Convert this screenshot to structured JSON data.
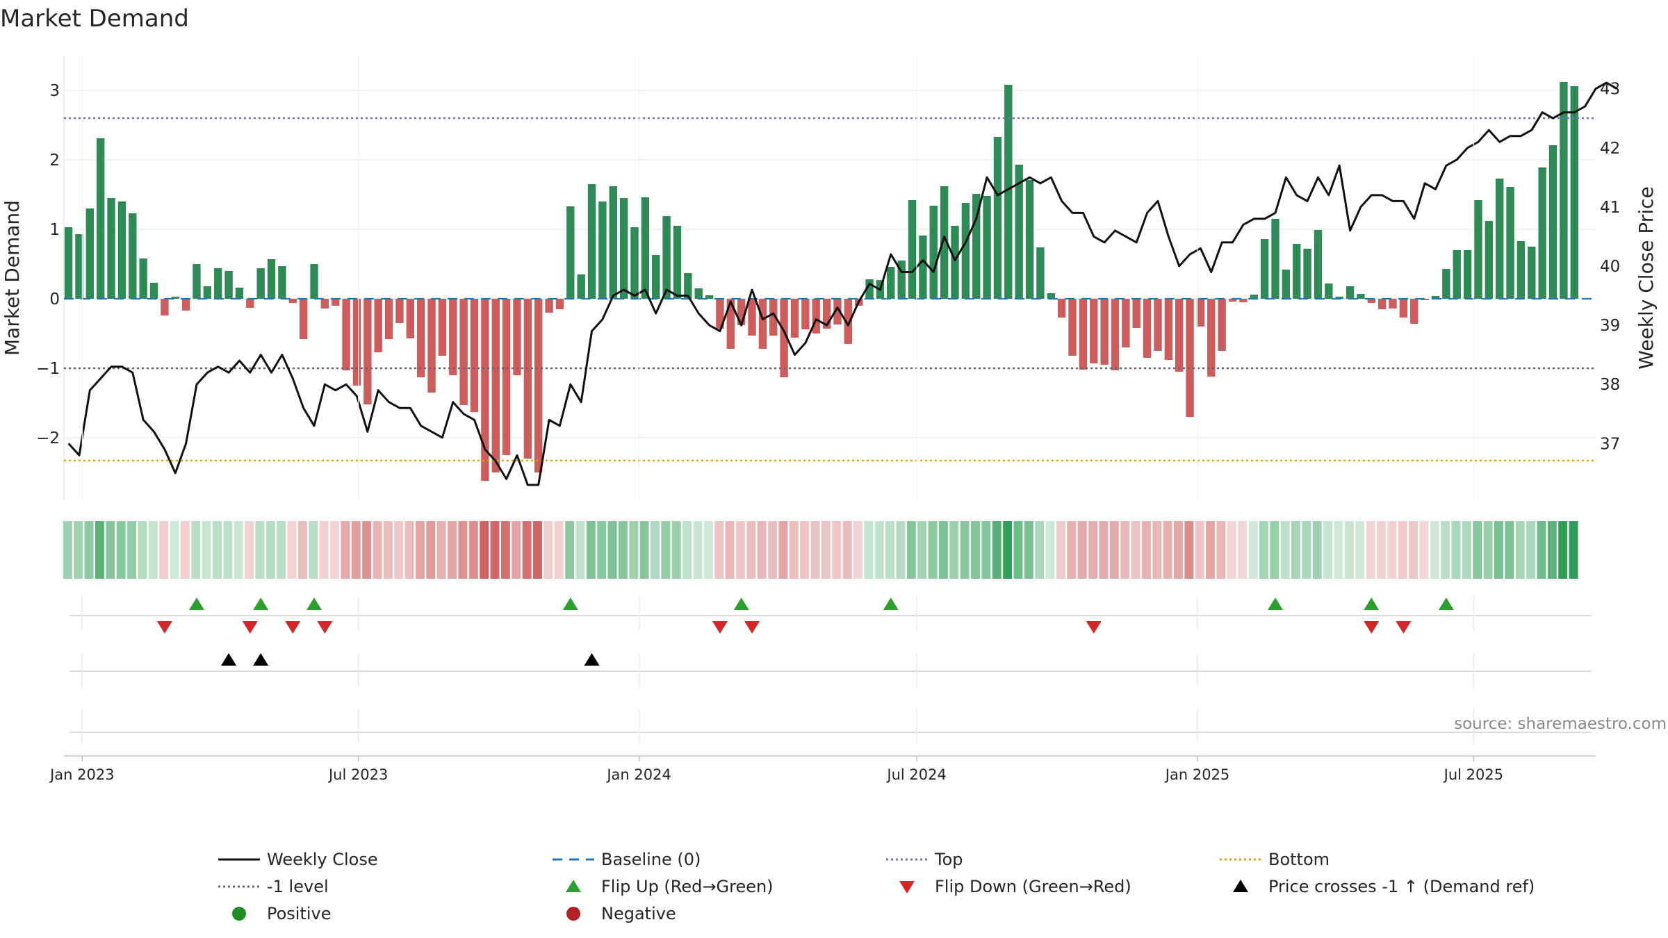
{
  "chart_data": {
    "type": "bar",
    "title": "Market Demand",
    "ylabel_left": "Market Demand",
    "ylabel_right": "Weekly Close Price",
    "source": "source: sharemaestro.com",
    "ylim_left": [
      -2.9,
      3.5
    ],
    "yticks_left": [
      3,
      2,
      1,
      0,
      -1,
      -2
    ],
    "ytick_labels_left": [
      "3",
      "2",
      "1",
      "0",
      "−1",
      "−2"
    ],
    "ylim_right": [
      36.04,
      43.56
    ],
    "yticks_right": [
      43,
      42,
      41,
      40,
      39,
      38,
      37
    ],
    "x_range": [
      "2022-12-20",
      "2025-09-19"
    ],
    "x_ticks": [
      {
        "date": "2023-01-01",
        "label": "Jan 2023"
      },
      {
        "date": "2023-07-01",
        "label": "Jul 2023"
      },
      {
        "date": "2024-01-01",
        "label": "Jan 2024"
      },
      {
        "date": "2024-07-01",
        "label": "Jul 2024"
      },
      {
        "date": "2025-01-01",
        "label": "Jan 2025"
      },
      {
        "date": "2025-07-01",
        "label": "Jul 2025"
      }
    ],
    "start_week": "2022-12-23",
    "week_days": 7,
    "reference_lines": {
      "top": 2.6,
      "minus_one": -1.0,
      "bottom": -2.33,
      "baseline": 0
    },
    "demand": [
      1.03,
      0.93,
      1.3,
      2.31,
      1.45,
      1.4,
      1.23,
      0.58,
      0.23,
      -0.24,
      0.03,
      -0.17,
      0.5,
      0.18,
      0.44,
      0.4,
      0.16,
      -0.13,
      0.44,
      0.57,
      0.47,
      -0.06,
      -0.58,
      0.5,
      -0.14,
      -0.1,
      -1.03,
      -1.25,
      -1.52,
      -0.77,
      -0.58,
      -0.35,
      -0.57,
      -1.13,
      -1.35,
      -0.82,
      -1.1,
      -1.53,
      -1.63,
      -2.62,
      -2.5,
      -2.25,
      -1.1,
      -2.3,
      -2.5,
      -0.2,
      -0.15,
      1.33,
      0.35,
      1.65,
      1.4,
      1.62,
      1.45,
      1.03,
      1.46,
      0.63,
      1.19,
      1.05,
      0.37,
      0.15,
      0.05,
      -0.43,
      -0.72,
      -0.38,
      -0.53,
      -0.72,
      -0.53,
      -1.13,
      -0.56,
      -0.44,
      -0.5,
      -0.43,
      -0.37,
      -0.65,
      -0.1,
      0.28,
      0.27,
      0.46,
      0.55,
      1.42,
      0.91,
      1.34,
      1.62,
      1.05,
      1.38,
      1.51,
      1.48,
      2.33,
      3.08,
      1.93,
      1.71,
      0.74,
      0.08,
      -0.27,
      -0.82,
      -1.02,
      -0.93,
      -0.95,
      -1.03,
      -0.7,
      -0.42,
      -0.85,
      -0.75,
      -0.88,
      -1.05,
      -1.7,
      -0.4,
      -1.12,
      -0.75,
      -0.04,
      -0.05,
      0.06,
      0.86,
      1.15,
      0.42,
      0.79,
      0.72,
      0.99,
      0.22,
      0.03,
      0.18,
      0.07,
      -0.06,
      -0.15,
      -0.14,
      -0.27,
      -0.36,
      -0.02,
      0.04,
      0.43,
      0.7,
      0.7,
      1.42,
      1.12,
      1.73,
      1.61,
      0.83,
      0.75,
      1.89,
      2.21,
      3.12,
      3.06
    ],
    "close": [
      37.0,
      36.8,
      37.9,
      38.1,
      38.3,
      38.3,
      38.2,
      37.4,
      37.2,
      36.9,
      36.5,
      37.0,
      38.0,
      38.2,
      38.3,
      38.2,
      38.4,
      38.2,
      38.5,
      38.2,
      38.5,
      38.1,
      37.6,
      37.3,
      38.0,
      37.9,
      38.0,
      37.8,
      37.2,
      37.9,
      37.7,
      37.6,
      37.6,
      37.3,
      37.2,
      37.1,
      37.7,
      37.5,
      37.4,
      36.9,
      36.7,
      36.4,
      36.8,
      36.3,
      36.3,
      37.4,
      37.3,
      38.0,
      37.7,
      38.9,
      39.1,
      39.5,
      39.6,
      39.5,
      39.6,
      39.2,
      39.6,
      39.5,
      39.5,
      39.2,
      39.0,
      38.9,
      39.4,
      39.0,
      39.6,
      39.1,
      39.2,
      38.9,
      38.5,
      38.7,
      39.1,
      39.0,
      39.3,
      39.0,
      39.4,
      39.7,
      39.6,
      40.2,
      39.9,
      39.9,
      40.1,
      39.9,
      40.5,
      40.1,
      40.4,
      40.8,
      41.5,
      41.2,
      41.3,
      41.4,
      41.5,
      41.4,
      41.5,
      41.1,
      40.9,
      40.9,
      40.5,
      40.4,
      40.6,
      40.5,
      40.4,
      40.9,
      41.1,
      40.5,
      40.0,
      40.2,
      40.3,
      39.9,
      40.4,
      40.4,
      40.7,
      40.8,
      40.8,
      40.9,
      41.5,
      41.2,
      41.1,
      41.5,
      41.2,
      41.7,
      40.6,
      41.0,
      41.2,
      41.2,
      41.1,
      41.1,
      40.8,
      41.4,
      41.3,
      41.7,
      41.8,
      42.0,
      42.1,
      42.3,
      42.1,
      42.2,
      42.2,
      42.3,
      42.6,
      42.5,
      42.6,
      42.6,
      42.7,
      43.0,
      43.1,
      43.0
    ],
    "flip_up_weeks": [
      12,
      18,
      23,
      47,
      63,
      77,
      113,
      122,
      129
    ],
    "flip_down_weeks": [
      9,
      17,
      21,
      24,
      61,
      64,
      96,
      122,
      125
    ],
    "price_cross_weeks": [
      15,
      18,
      49
    ],
    "colors": {
      "positive_bar": "#2e8b57",
      "negative_bar": "#cd5c5c",
      "close_line": "#111111",
      "baseline": "#1f77b4",
      "top": "#7070c8",
      "bottom": "#e6a000",
      "minus_one": "#666677",
      "flip_up": "#2ca02c",
      "flip_down": "#d62728",
      "price_cross": "#000000",
      "positive_dot": "#228b22",
      "negative_dot": "#b22222"
    },
    "legend": [
      {
        "label": "Weekly Close",
        "marker": "line-solid",
        "color": "#111111"
      },
      {
        "label": "Baseline (0)",
        "marker": "line-dashed",
        "color": "#1f77b4"
      },
      {
        "label": "Top",
        "marker": "line-dotted",
        "color": "#7070c8"
      },
      {
        "label": "Bottom",
        "marker": "line-dotted",
        "color": "#e6a000"
      },
      {
        "label": "-1 level",
        "marker": "line-dotted",
        "color": "#666677"
      },
      {
        "label": "Flip Up (Red→Green)",
        "marker": "triangle-up",
        "color": "#2ca02c"
      },
      {
        "label": "Flip Down (Green→Red)",
        "marker": "triangle-down",
        "color": "#d62728"
      },
      {
        "label": "Price crosses -1 ↑ (Demand ref)",
        "marker": "triangle-up",
        "color": "#000000"
      },
      {
        "label": "Positive",
        "marker": "dot",
        "color": "#228b22"
      },
      {
        "label": "Negative",
        "marker": "dot",
        "color": "#b22222"
      }
    ],
    "legend_position": "bottom"
  }
}
